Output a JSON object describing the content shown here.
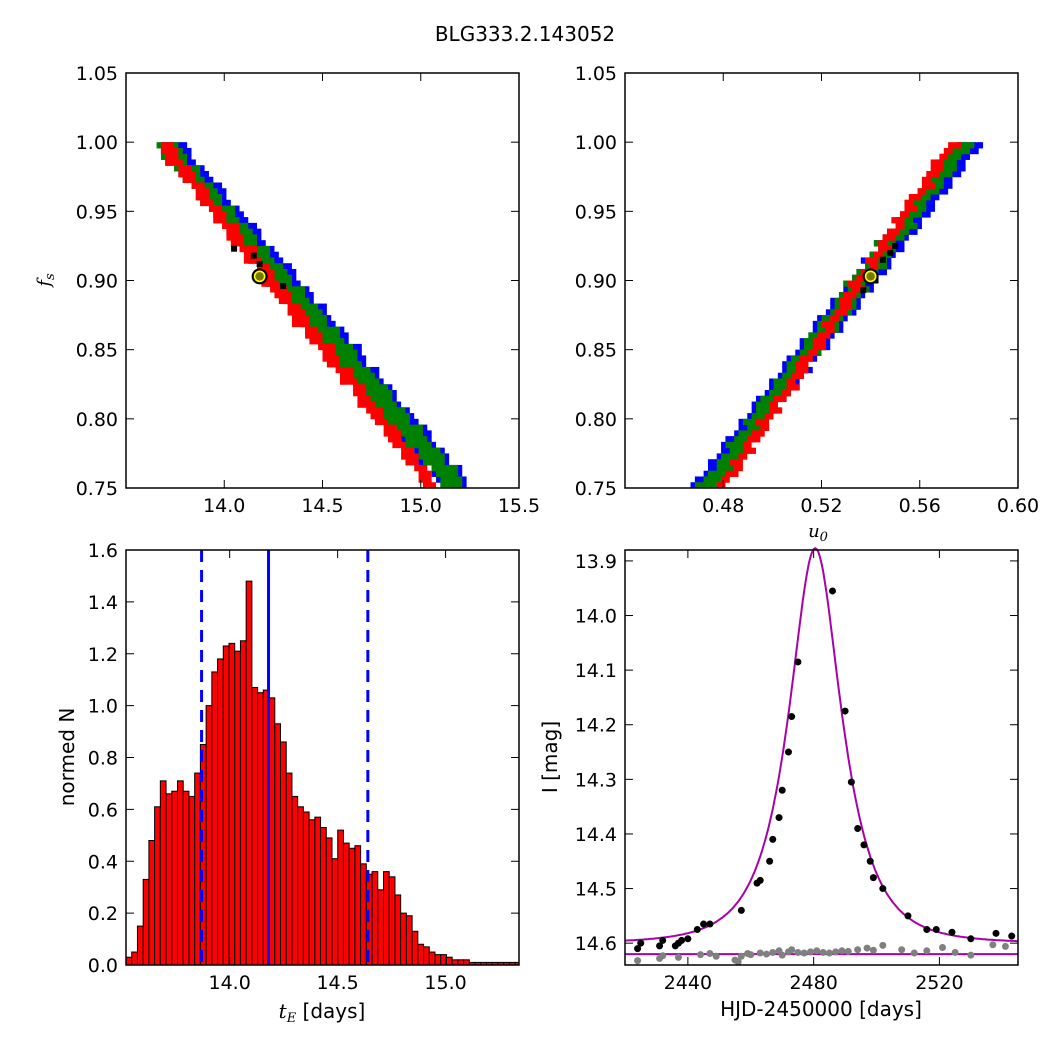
{
  "figure": {
    "title": "BLG333.2.143052"
  },
  "chart_data": [
    {
      "id": "tE-fs",
      "type": "heatmap",
      "title": "",
      "xlabel": "",
      "ylabel": "f_s",
      "xlim": [
        13.5,
        15.5
      ],
      "ylim": [
        0.75,
        1.05
      ],
      "xticks": [
        {
          "v": 14.0,
          "label": "14.0"
        },
        {
          "v": 14.5,
          "label": "14.5"
        },
        {
          "v": 15.0,
          "label": "15.0"
        },
        {
          "v": 15.5,
          "label": "15.5"
        }
      ],
      "yticks": [
        {
          "v": 0.75,
          "label": "0.75"
        },
        {
          "v": 0.8,
          "label": "0.80"
        },
        {
          "v": 0.85,
          "label": "0.85"
        },
        {
          "v": 0.9,
          "label": "0.90"
        },
        {
          "v": 0.95,
          "label": "0.95"
        },
        {
          "v": 1.0,
          "label": "1.00"
        },
        {
          "v": 1.05,
          "label": "1.05"
        }
      ],
      "regions": [
        {
          "name": "outer",
          "color": "#0000ff",
          "top": [
            13.55,
            13.85
          ],
          "bottom": [
            15.05,
            15.32
          ],
          "width": 0.085
        },
        {
          "name": "middle",
          "color": "#008000",
          "top": [
            13.55,
            13.8
          ],
          "bottom": [
            15.08,
            15.28
          ],
          "width": 0.065
        },
        {
          "name": "core",
          "color": "#ff0000",
          "top": [
            13.62,
            13.72
          ],
          "bottom": [
            15.0,
            15.12
          ],
          "width": 0.04
        }
      ],
      "best_fit": {
        "x": 14.18,
        "y": 0.903
      },
      "samples": [
        [
          14.05,
          0.923
        ],
        [
          14.18,
          0.912
        ],
        [
          14.3,
          0.896
        ],
        [
          14.15,
          0.918
        ]
      ]
    },
    {
      "id": "u0-fs",
      "type": "heatmap",
      "title": "",
      "xlabel": "u_0",
      "ylabel": "",
      "xlim": [
        0.44,
        0.6
      ],
      "ylim": [
        0.75,
        1.05
      ],
      "xticks": [
        {
          "v": 0.48,
          "label": "0.48"
        },
        {
          "v": 0.52,
          "label": "0.52"
        },
        {
          "v": 0.56,
          "label": "0.56"
        },
        {
          "v": 0.6,
          "label": "0.60"
        }
      ],
      "yticks": [
        {
          "v": 0.75,
          "label": "0.75"
        },
        {
          "v": 0.8,
          "label": "0.80"
        },
        {
          "v": 0.85,
          "label": "0.85"
        },
        {
          "v": 0.9,
          "label": "0.90"
        },
        {
          "v": 0.95,
          "label": "0.95"
        },
        {
          "v": 1.0,
          "label": "1.00"
        },
        {
          "v": 1.05,
          "label": "1.05"
        }
      ],
      "regions": [
        {
          "name": "outer",
          "color": "#0000ff",
          "bottom": [
            0.468,
            0.478
          ],
          "top": [
            0.577,
            0.586
          ],
          "width": 0.006
        },
        {
          "name": "middle",
          "color": "#008000",
          "bottom": [
            0.47,
            0.479
          ],
          "top": [
            0.574,
            0.584
          ],
          "width": 0.0045
        },
        {
          "name": "core",
          "color": "#ff0000",
          "bottom": [
            0.478,
            0.482
          ],
          "top": [
            0.571,
            0.578
          ],
          "width": 0.0025
        }
      ],
      "best_fit": {
        "x": 0.54,
        "y": 0.903
      },
      "samples": [
        [
          0.545,
          0.915
        ],
        [
          0.548,
          0.92
        ],
        [
          0.55,
          0.925
        ],
        [
          0.537,
          0.893
        ],
        [
          0.542,
          0.9
        ]
      ]
    },
    {
      "id": "tE-hist",
      "type": "bar",
      "title": "",
      "xlabel": "t_E [days]",
      "ylabel": "normed N",
      "xlim": [
        13.52,
        15.34
      ],
      "ylim": [
        0,
        1.6
      ],
      "xticks": [
        {
          "v": 14.0,
          "label": "14.0"
        },
        {
          "v": 14.5,
          "label": "14.5"
        },
        {
          "v": 15.0,
          "label": "15.0"
        }
      ],
      "yticks": [
        {
          "v": 0.0,
          "label": "0.0"
        },
        {
          "v": 0.2,
          "label": "0.2"
        },
        {
          "v": 0.4,
          "label": "0.4"
        },
        {
          "v": 0.6,
          "label": "0.6"
        },
        {
          "v": 0.8,
          "label": "0.8"
        },
        {
          "v": 1.0,
          "label": "1.0"
        },
        {
          "v": 1.2,
          "label": "1.2"
        },
        {
          "v": 1.4,
          "label": "1.4"
        },
        {
          "v": 1.6,
          "label": "1.6"
        }
      ],
      "bin_start": 13.52,
      "bin_width": 0.0265,
      "values": [
        0.03,
        0.05,
        0.15,
        0.33,
        0.48,
        0.61,
        0.71,
        0.66,
        0.67,
        0.71,
        0.67,
        0.65,
        0.74,
        0.85,
        1.0,
        1.13,
        1.18,
        1.23,
        1.24,
        1.21,
        1.25,
        1.48,
        1.07,
        1.05,
        1.06,
        1.03,
        0.93,
        0.86,
        0.74,
        0.65,
        0.61,
        0.59,
        0.56,
        0.57,
        0.53,
        0.49,
        0.41,
        0.52,
        0.47,
        0.45,
        0.46,
        0.39,
        0.35,
        0.36,
        0.29,
        0.36,
        0.34,
        0.27,
        0.2,
        0.19,
        0.13,
        0.08,
        0.07,
        0.05,
        0.04,
        0.04,
        0.03,
        0.02,
        0.02,
        0.02,
        0.01,
        0.01,
        0.01,
        0.01,
        0.01,
        0.01,
        0.01,
        0.01,
        0.01
      ],
      "bar_color": "#ff0000",
      "vlines": [
        {
          "x": 14.18,
          "style": "solid",
          "color": "#0000ff"
        },
        {
          "x": 13.87,
          "style": "dashed",
          "color": "#0000ff"
        },
        {
          "x": 14.64,
          "style": "dashed",
          "color": "#0000ff"
        }
      ]
    },
    {
      "id": "lightcurve",
      "type": "scatter",
      "title": "",
      "xlabel": "HJD-2450000 [days]",
      "ylabel": "I [mag]",
      "xlim": [
        2420,
        2545
      ],
      "ylim": [
        14.64,
        13.88
      ],
      "y_inverted": true,
      "xticks": [
        {
          "v": 2440,
          "label": "2440"
        },
        {
          "v": 2480,
          "label": "2480"
        },
        {
          "v": 2520,
          "label": "2520"
        }
      ],
      "yticks": [
        {
          "v": 13.9,
          "label": "13.9"
        },
        {
          "v": 14.0,
          "label": "14.0"
        },
        {
          "v": 14.1,
          "label": "14.1"
        },
        {
          "v": 14.2,
          "label": "14.2"
        },
        {
          "v": 14.3,
          "label": "14.3"
        },
        {
          "v": 14.4,
          "label": "14.4"
        },
        {
          "v": 14.5,
          "label": "14.5"
        },
        {
          "v": 14.6,
          "label": "14.6"
        }
      ],
      "model": {
        "color": "#aa00aa",
        "t0": 2480.5,
        "tE": 14.18,
        "u0": 0.54,
        "fs": 0.903,
        "baseline": 14.62
      },
      "series": [
        {
          "color": "#000000",
          "points": [
            [
              2424,
              14.61
            ],
            [
              2425,
              14.6
            ],
            [
              2431,
              14.605
            ],
            [
              2432,
              14.595
            ],
            [
              2436,
              14.605
            ],
            [
              2437,
              14.6
            ],
            [
              2438,
              14.595
            ],
            [
              2440,
              14.592
            ],
            [
              2443,
              14.575
            ],
            [
              2445,
              14.565
            ],
            [
              2447,
              14.565
            ],
            [
              2457,
              14.54
            ],
            [
              2462,
              14.49
            ],
            [
              2463,
              14.485
            ],
            [
              2466,
              14.45
            ],
            [
              2467,
              14.41
            ],
            [
              2469,
              14.37
            ],
            [
              2470,
              14.32
            ],
            [
              2472,
              14.25
            ],
            [
              2473,
              14.185
            ],
            [
              2475,
              14.085
            ],
            [
              2486,
              13.955
            ],
            [
              2490,
              14.175
            ],
            [
              2492,
              14.305
            ],
            [
              2494,
              14.39
            ],
            [
              2496,
              14.42
            ],
            [
              2498,
              14.45
            ],
            [
              2499,
              14.48
            ],
            [
              2502,
              14.5
            ],
            [
              2510,
              14.55
            ],
            [
              2516,
              14.575
            ],
            [
              2519,
              14.575
            ],
            [
              2524,
              14.58
            ],
            [
              2530,
              14.592
            ],
            [
              2538,
              14.582
            ],
            [
              2543,
              14.587
            ]
          ]
        },
        {
          "color": "#808080",
          "points": [
            [
              2424,
              14.632
            ],
            [
              2431,
              14.628
            ],
            [
              2432,
              14.623
            ],
            [
              2437,
              14.626
            ],
            [
              2444,
              14.621
            ],
            [
              2447,
              14.619
            ],
            [
              2449,
              14.624
            ],
            [
              2455,
              14.631
            ],
            [
              2456,
              14.634
            ],
            [
              2457,
              14.624
            ],
            [
              2459,
              14.619
            ],
            [
              2460,
              14.621
            ],
            [
              2463,
              14.618
            ],
            [
              2465,
              14.62
            ],
            [
              2467,
              14.617
            ],
            [
              2469,
              14.614
            ],
            [
              2470,
              14.622
            ],
            [
              2472,
              14.616
            ],
            [
              2473,
              14.612
            ],
            [
              2475,
              14.617
            ],
            [
              2477,
              14.618
            ],
            [
              2479,
              14.616
            ],
            [
              2481,
              14.614
            ],
            [
              2483,
              14.617
            ],
            [
              2485,
              14.618
            ],
            [
              2487,
              14.616
            ],
            [
              2489,
              14.614
            ],
            [
              2491,
              14.615
            ],
            [
              2494,
              14.612
            ],
            [
              2497,
              14.609
            ],
            [
              2499,
              14.613
            ],
            [
              2502,
              14.604
            ],
            [
              2508,
              14.612
            ],
            [
              2512,
              14.618
            ],
            [
              2516,
              14.614
            ],
            [
              2521,
              14.608
            ],
            [
              2525,
              14.617
            ],
            [
              2530,
              14.622
            ],
            [
              2537,
              14.603
            ],
            [
              2541,
              14.606
            ]
          ]
        }
      ]
    }
  ]
}
